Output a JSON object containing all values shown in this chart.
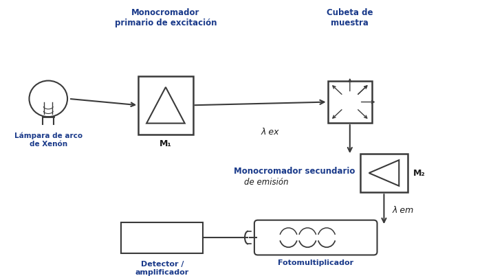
{
  "bg_color": "#ffffff",
  "text_color": "#1a1a1a",
  "line_color": "#3a3a3a",
  "title_color": "#1a3a8a",
  "labels": {
    "lamp": "Lámpara de arco\nde Xenón",
    "mono1_title": "Monocromador\nprimario de excitación",
    "mono1_label": "M₁",
    "lambda_ex": "λ ex",
    "cubeta_title": "Cubeta de\nmuestra",
    "mono2_title": "Monocromador secundario",
    "mono2_subtitle": "de emisión",
    "mono2_label": "M₂",
    "lambda_em": "λ em",
    "detector": "Detector /\namplificador",
    "fotomult": "Fotomultiplicador"
  }
}
